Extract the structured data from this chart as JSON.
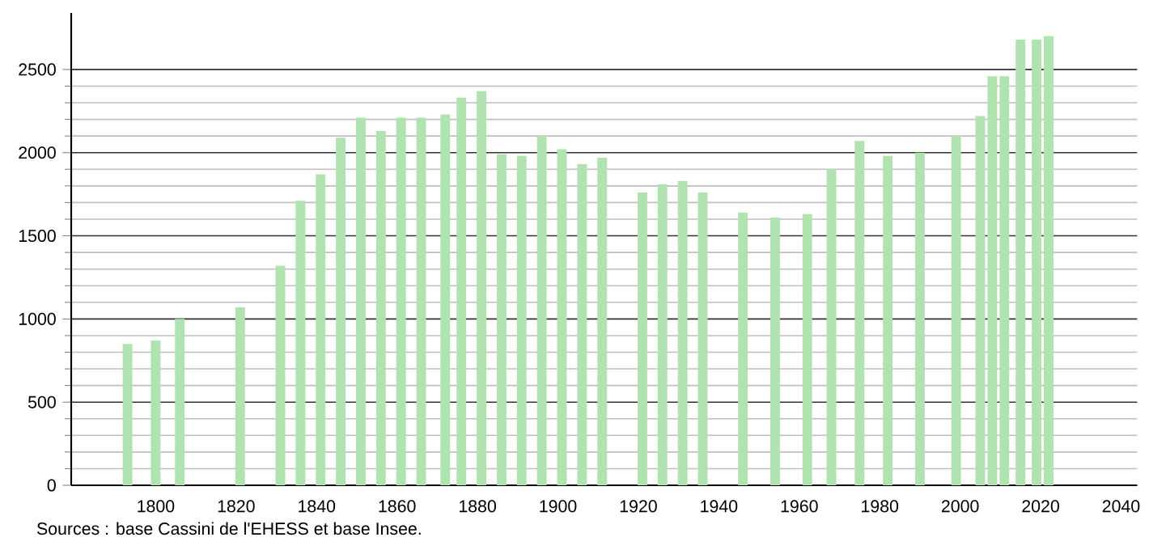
{
  "chart_data": {
    "type": "bar",
    "x": [
      1793,
      1800,
      1806,
      1821,
      1831,
      1836,
      1841,
      1846,
      1851,
      1856,
      1861,
      1866,
      1872,
      1876,
      1881,
      1886,
      1891,
      1896,
      1901,
      1906,
      1911,
      1921,
      1926,
      1931,
      1936,
      1946,
      1954,
      1962,
      1968,
      1975,
      1982,
      1990,
      1999,
      2005,
      2008,
      2011,
      2015,
      2019,
      2022
    ],
    "values": [
      850,
      870,
      1000,
      1070,
      1320,
      1710,
      1870,
      2090,
      2210,
      2130,
      2210,
      2210,
      2230,
      2330,
      2370,
      1990,
      1980,
      2100,
      2020,
      1930,
      1970,
      1760,
      1810,
      1830,
      1760,
      1640,
      1610,
      1630,
      1900,
      2070,
      1980,
      2000,
      2100,
      2220,
      2460,
      2460,
      2680,
      2680,
      2700
    ],
    "color": "#b0e3b0",
    "xlim": [
      1779,
      2044
    ],
    "ylim": [
      0,
      2840
    ],
    "xticks": [
      1800,
      1820,
      1840,
      1860,
      1880,
      1900,
      1920,
      1940,
      1960,
      1980,
      2000,
      2020,
      2040
    ],
    "yticks": [
      0,
      500,
      1000,
      1500,
      2000,
      2500
    ],
    "grid": "y",
    "annotations": [
      "Sources : base Cassini de l'EHESS et base Insee."
    ]
  }
}
